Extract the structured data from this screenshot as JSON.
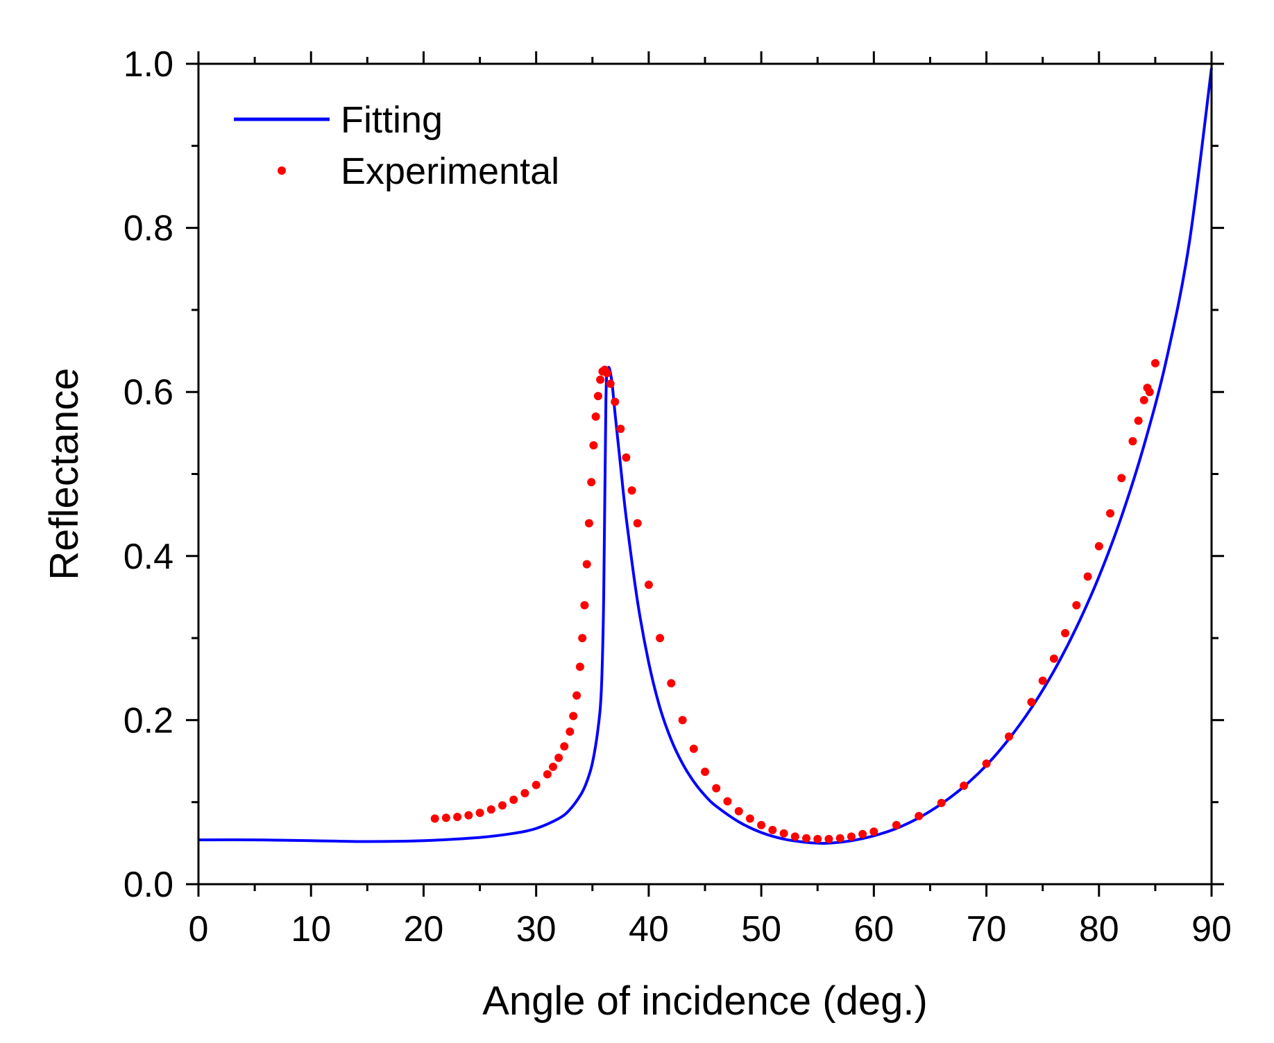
{
  "chart_data": {
    "type": "line",
    "title": "",
    "xlabel": "Angle of incidence (deg.)",
    "ylabel": "Reflectance",
    "xlim": [
      0,
      90
    ],
    "ylim": [
      0.0,
      1.0
    ],
    "x_ticks": [
      0,
      10,
      20,
      30,
      40,
      50,
      60,
      70,
      80,
      90
    ],
    "x_tick_labels": [
      "0",
      "10",
      "20",
      "30",
      "40",
      "50",
      "60",
      "70",
      "80",
      "90"
    ],
    "x_minor_step": 5,
    "y_ticks": [
      0.0,
      0.2,
      0.4,
      0.6,
      0.8,
      1.0
    ],
    "y_tick_labels": [
      "0.0",
      "0.2",
      "0.4",
      "0.6",
      "0.8",
      "1.0"
    ],
    "y_minor_step": 0.1,
    "grid": false,
    "legend_position": "top-left",
    "series": [
      {
        "name": "Fitting",
        "kind": "line",
        "color": "#0000ff",
        "x": [
          0,
          5,
          10,
          15,
          20,
          25,
          28,
          30,
          32,
          33,
          34,
          34.5,
          35,
          35.5,
          35.8,
          36.0,
          36.2,
          36.4,
          36.7,
          37,
          37.5,
          38,
          39,
          40,
          41,
          42,
          43,
          44,
          45,
          46,
          48,
          50,
          52,
          54,
          55,
          56,
          58,
          60,
          62,
          64,
          66,
          68,
          70,
          72,
          74,
          76,
          78,
          80,
          82,
          84,
          86,
          88,
          90
        ],
        "values": [
          0.054,
          0.054,
          0.053,
          0.052,
          0.053,
          0.057,
          0.062,
          0.068,
          0.08,
          0.091,
          0.11,
          0.125,
          0.148,
          0.19,
          0.24,
          0.35,
          0.59,
          0.629,
          0.615,
          0.575,
          0.51,
          0.447,
          0.345,
          0.27,
          0.215,
          0.176,
          0.147,
          0.125,
          0.108,
          0.095,
          0.076,
          0.063,
          0.055,
          0.051,
          0.05,
          0.05,
          0.053,
          0.059,
          0.068,
          0.081,
          0.098,
          0.119,
          0.145,
          0.177,
          0.215,
          0.26,
          0.313,
          0.375,
          0.448,
          0.535,
          0.64,
          0.78,
          0.995
        ]
      },
      {
        "name": "Experimental",
        "kind": "scatter",
        "color": "#ff0000",
        "x": [
          21,
          22,
          23,
          24,
          25,
          26,
          27,
          28,
          29,
          30,
          31,
          31.5,
          32,
          32.5,
          33,
          33.3,
          33.6,
          33.9,
          34.1,
          34.3,
          34.5,
          34.7,
          34.9,
          35.1,
          35.3,
          35.5,
          35.7,
          35.9,
          36.1,
          36.3,
          36.6,
          37,
          37.5,
          38,
          38.5,
          39,
          40,
          41,
          42,
          43,
          44,
          45,
          46,
          47,
          48,
          49,
          50,
          51,
          52,
          53,
          54,
          55,
          56,
          57,
          58,
          59,
          60,
          62,
          64,
          66,
          68,
          70,
          72,
          74,
          75,
          76,
          77,
          78,
          79,
          80,
          81,
          82,
          83,
          83.5,
          84,
          84.3,
          84.5,
          85
        ],
        "values": [
          0.08,
          0.081,
          0.082,
          0.084,
          0.087,
          0.091,
          0.096,
          0.103,
          0.111,
          0.121,
          0.134,
          0.143,
          0.154,
          0.168,
          0.186,
          0.205,
          0.23,
          0.265,
          0.3,
          0.34,
          0.39,
          0.44,
          0.49,
          0.535,
          0.57,
          0.595,
          0.615,
          0.625,
          0.627,
          0.623,
          0.61,
          0.588,
          0.555,
          0.52,
          0.48,
          0.44,
          0.365,
          0.3,
          0.245,
          0.2,
          0.165,
          0.137,
          0.117,
          0.101,
          0.089,
          0.08,
          0.072,
          0.066,
          0.062,
          0.058,
          0.056,
          0.055,
          0.055,
          0.056,
          0.058,
          0.061,
          0.064,
          0.072,
          0.083,
          0.099,
          0.12,
          0.147,
          0.18,
          0.222,
          0.248,
          0.275,
          0.306,
          0.34,
          0.375,
          0.412,
          0.452,
          0.495,
          0.54,
          0.565,
          0.59,
          0.605,
          0.6,
          0.635
        ]
      }
    ]
  }
}
